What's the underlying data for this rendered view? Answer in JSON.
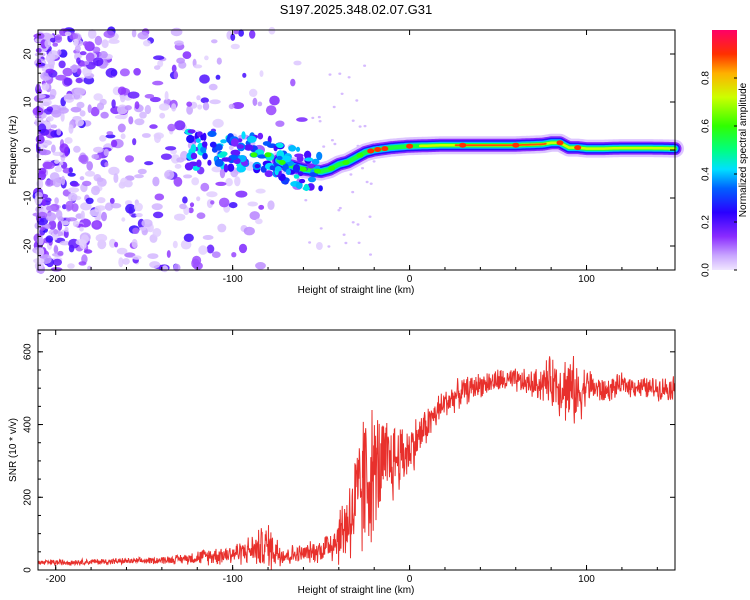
{
  "figure_title": "S197.2025.348.02.07.G31",
  "colors": {
    "snr_line": "#e8302c",
    "axis": "#000000",
    "colormap": [
      "#e6d8ff",
      "#c9a6ff",
      "#9933ff",
      "#5a00ff",
      "#0000ff",
      "#00c8ff",
      "#00ff99",
      "#33ff00",
      "#ccff00",
      "#ffcc00",
      "#ff3300",
      "#ff0066"
    ]
  },
  "chart_data": [
    {
      "name": "spectrogram",
      "type": "heatmap",
      "title": "S197.2025.348.02.07.G31",
      "xlabel": "Height of straight line (km)",
      "ylabel": "Frequency (Hz)",
      "xlim": [
        -210,
        150
      ],
      "ylim": [
        -25,
        25
      ],
      "x_ticks": [
        -200,
        -100,
        0,
        100
      ],
      "x_tick_labels": [
        "-200",
        "-100",
        "0",
        "100"
      ],
      "y_ticks": [
        20,
        10,
        0,
        -10,
        -20
      ],
      "y_tick_labels": [
        "20",
        "10",
        "0",
        "-10",
        "-20"
      ],
      "ridge": {
        "x": [
          -110,
          -100,
          -90,
          -80,
          -70,
          -60,
          -50,
          -45,
          -40,
          -35,
          -30,
          -25,
          -20,
          -10,
          0,
          10,
          20,
          40,
          60,
          75,
          80,
          85,
          90,
          95,
          100,
          110,
          120,
          135,
          150
        ],
        "y": [
          0,
          0,
          -1,
          -1,
          -3,
          -4,
          -4.5,
          -4,
          -3,
          -2.5,
          -1.5,
          -0.5,
          0,
          0.5,
          0.8,
          0.9,
          1,
          1,
          1,
          1.2,
          1.5,
          1.5,
          0.5,
          0.5,
          0.3,
          0.3,
          0.4,
          0.4,
          0.3
        ]
      },
      "colorbar": {
        "label": "Normalized spectral amplitude",
        "range": [
          0,
          1
        ],
        "ticks": [
          0.0,
          0.2,
          0.4,
          0.6,
          0.8
        ],
        "tick_labels": [
          "0.0",
          "0.2",
          "0.4",
          "0.6",
          "0.8"
        ]
      }
    },
    {
      "name": "snr",
      "type": "line",
      "xlabel": "Height of straight line (km)",
      "ylabel": "SNR (10 * v/v)",
      "xlim": [
        -210,
        150
      ],
      "ylim": [
        0,
        660
      ],
      "x_ticks": [
        -200,
        -100,
        0,
        100
      ],
      "x_tick_labels": [
        "-200",
        "-100",
        "0",
        "100"
      ],
      "y_ticks": [
        0,
        200,
        400,
        600
      ],
      "y_tick_labels": [
        "0",
        "200",
        "400",
        "600"
      ],
      "envelope": {
        "x": [
          -210,
          -150,
          -130,
          -110,
          -100,
          -90,
          -80,
          -70,
          -60,
          -50,
          -40,
          -30,
          -25,
          -20,
          -10,
          0,
          10,
          20,
          30,
          40,
          50,
          60,
          70,
          80,
          90,
          95,
          100,
          110,
          120,
          135,
          150
        ],
        "mean": [
          20,
          25,
          30,
          40,
          45,
          55,
          65,
          40,
          45,
          55,
          90,
          180,
          250,
          270,
          300,
          330,
          400,
          460,
          490,
          510,
          520,
          520,
          510,
          520,
          500,
          480,
          510,
          490,
          510,
          500,
          500
        ],
        "spread": [
          10,
          10,
          15,
          30,
          35,
          45,
          80,
          35,
          30,
          40,
          90,
          200,
          260,
          200,
          140,
          90,
          60,
          50,
          45,
          40,
          40,
          40,
          45,
          80,
          120,
          100,
          60,
          40,
          35,
          35,
          40
        ]
      }
    }
  ]
}
